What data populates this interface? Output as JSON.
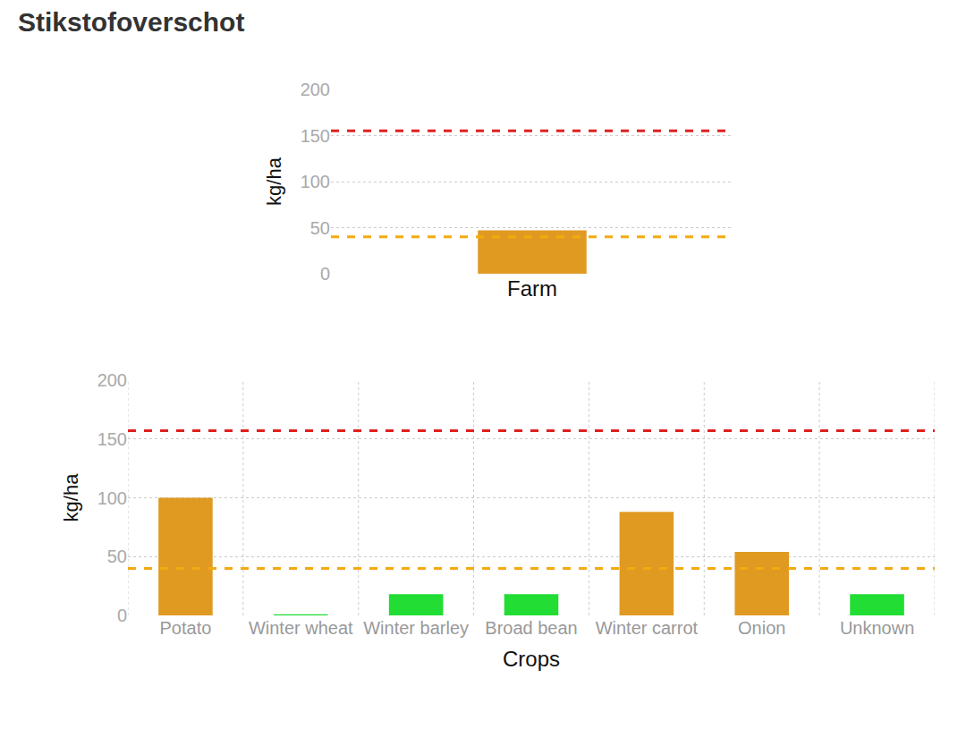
{
  "title": "Stikstofoverschot",
  "chart_data": [
    {
      "type": "bar",
      "y_label": "kg/ha",
      "categories": [
        "Farm"
      ],
      "values": [
        47
      ],
      "colors": [
        "#e09a22"
      ],
      "ylim": [
        0,
        200
      ],
      "yticks": [
        0,
        50,
        100,
        150,
        200
      ],
      "grid": "y",
      "thresholds": [
        {
          "value": 155,
          "color": "#e02020",
          "line_style": "dash"
        },
        {
          "value": 40,
          "color": "#f2aa10",
          "line_style": "dash"
        }
      ]
    },
    {
      "type": "bar",
      "y_label": "kg/ha",
      "x_label": "Crops",
      "categories": [
        "Potato",
        "Winter wheat",
        "Winter barley",
        "Broad bean",
        "Winter carrot",
        "Onion",
        "Unknown"
      ],
      "values": [
        100,
        1,
        18,
        18,
        88,
        54,
        18
      ],
      "colors": [
        "#e09a22",
        "#22dd33",
        "#22dd33",
        "#22dd33",
        "#e09a22",
        "#e09a22",
        "#22dd33"
      ],
      "ylim": [
        0,
        200
      ],
      "yticks": [
        0,
        50,
        100,
        150,
        200
      ],
      "grid": true,
      "thresholds": [
        {
          "value": 157,
          "color": "#e02020",
          "line_style": "dash"
        },
        {
          "value": 40,
          "color": "#f2aa10",
          "line_style": "dash"
        }
      ]
    }
  ]
}
